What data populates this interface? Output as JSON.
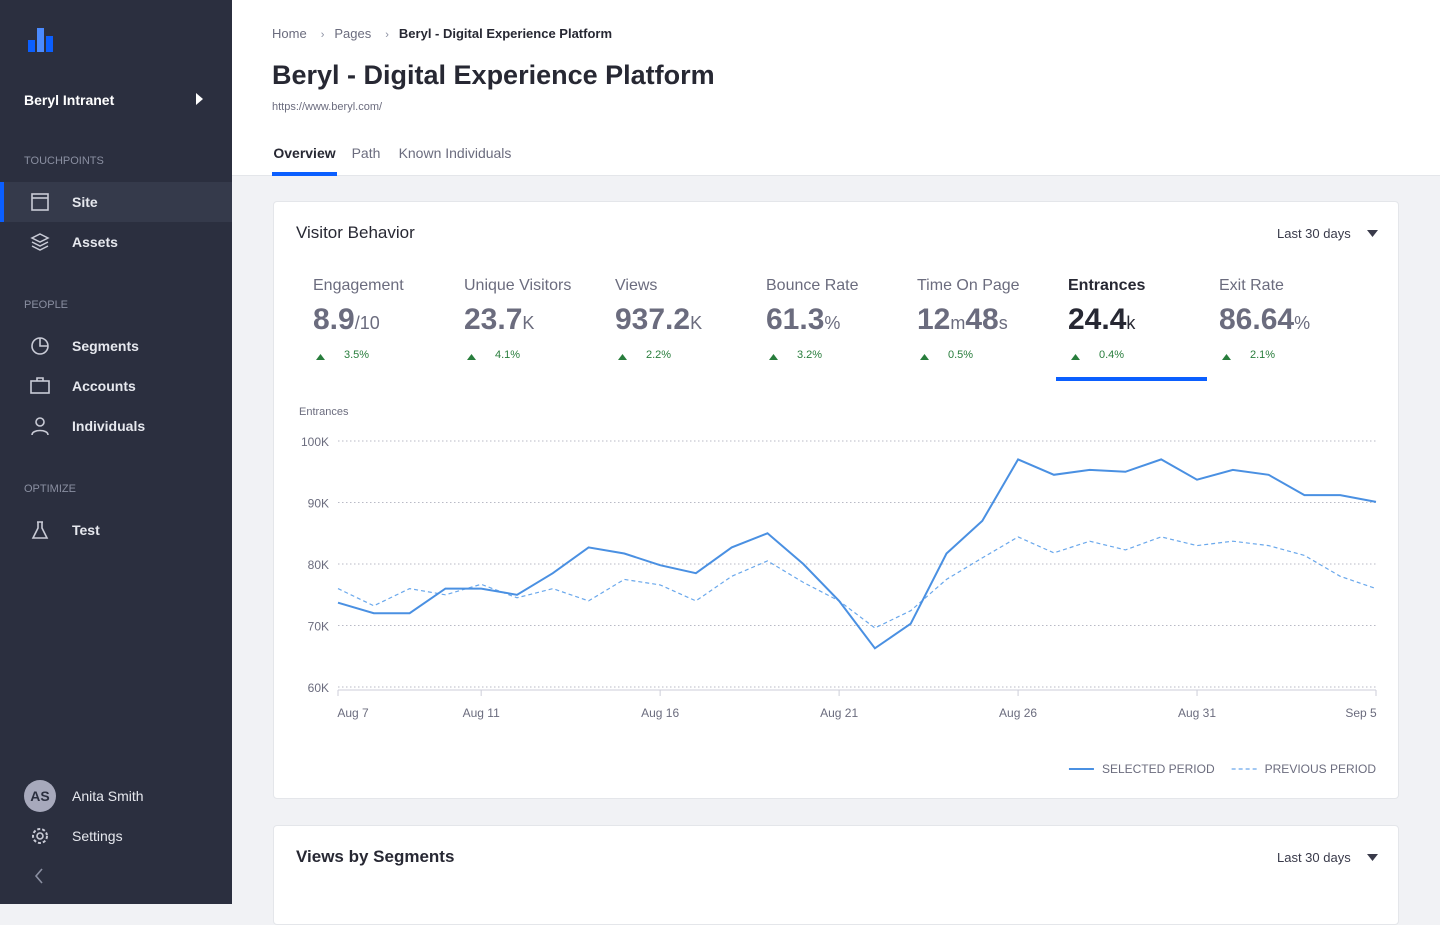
{
  "sidebar": {
    "brand": "Beryl Intranet",
    "sections": [
      {
        "title": "TOUCHPOINTS",
        "items": [
          {
            "label": "Site",
            "active": true
          },
          {
            "label": "Assets",
            "active": false
          }
        ]
      },
      {
        "title": "PEOPLE",
        "items": [
          {
            "label": "Segments",
            "active": false
          },
          {
            "label": "Accounts",
            "active": false
          },
          {
            "label": "Individuals",
            "active": false
          }
        ]
      },
      {
        "title": "OPTIMIZE",
        "items": [
          {
            "label": "Test",
            "active": false
          }
        ]
      }
    ],
    "user": {
      "initials": "AS",
      "name": "Anita Smith"
    },
    "settings": "Settings"
  },
  "header": {
    "breadcrumb": [
      "Home",
      "Pages",
      "Beryl - Digital Experience Platform"
    ],
    "title": "Beryl - Digital Experience Platform",
    "url": "https://www.beryl.com/",
    "tabs": [
      "Overview",
      "Path",
      "Known Individuals"
    ],
    "active_tab": 0
  },
  "card": {
    "title": "Visitor Behavior",
    "range": "Last 30 days",
    "active": 5,
    "metrics": [
      {
        "label": "Engagement",
        "parts": [
          {
            "v": 8.9,
            "u": "/10"
          }
        ],
        "change": "3.5%"
      },
      {
        "label": "Unique Visitors",
        "parts": [
          {
            "v": 23.7,
            "u": "K"
          }
        ],
        "change": "4.1%"
      },
      {
        "label": "Views",
        "parts": [
          {
            "v": 937.2,
            "u": "K"
          }
        ],
        "change": "2.2%"
      },
      {
        "label": "Bounce Rate",
        "parts": [
          {
            "v": 61.3,
            "u": "%"
          }
        ],
        "change": "3.2%"
      },
      {
        "label": "Time On Page",
        "parts": [
          {
            "v": 12,
            "u": "m"
          },
          {
            "v": 48,
            "u": "s"
          }
        ],
        "change": "0.5%"
      },
      {
        "label": "Entrances",
        "parts": [
          {
            "v": 24.4,
            "u": "k"
          }
        ],
        "change": "0.4%"
      },
      {
        "label": "Exit Rate",
        "parts": [
          {
            "v": 86.64,
            "u": "%"
          }
        ],
        "change": "2.1%"
      }
    ]
  },
  "chart_data": {
    "type": "line",
    "y_label": "Entrances",
    "categories": [
      "Aug 7",
      null,
      null,
      null,
      "Aug 11",
      null,
      null,
      null,
      null,
      "Aug 16",
      null,
      null,
      null,
      null,
      "Aug 21",
      null,
      null,
      null,
      null,
      "Aug 26",
      null,
      null,
      null,
      null,
      "Aug 31",
      null,
      null,
      null,
      null,
      "Sep 5"
    ],
    "series": [
      {
        "name": "SELECTED PERIOD",
        "color": "#4a90e2",
        "dashed": false,
        "values": [
          73700,
          72000,
          72000,
          76000,
          76000,
          75000,
          78500,
          82700,
          81700,
          79800,
          78500,
          82700,
          85000,
          80000,
          74000,
          66300,
          70300,
          81700,
          87000,
          97000,
          94500,
          95300,
          95000,
          97000,
          93700,
          95300,
          94500,
          91200,
          91200,
          90100
        ]
      },
      {
        "name": "PREVIOUS PERIOD",
        "color": "#6aa8ec",
        "dashed": true,
        "values": [
          76000,
          73200,
          76000,
          75000,
          76700,
          74500,
          76000,
          74000,
          77500,
          76600,
          74000,
          78000,
          80500,
          77000,
          74000,
          69600,
          72400,
          77500,
          81000,
          84400,
          81800,
          83700,
          82300,
          84400,
          83000,
          83700,
          83000,
          81400,
          78000,
          76000
        ]
      }
    ],
    "ylim": [
      60000,
      100000
    ],
    "yticks": [
      {
        "value": 60000,
        "label": "60K"
      },
      {
        "value": 70000,
        "label": "70K"
      },
      {
        "value": 80000,
        "label": "80K"
      },
      {
        "value": 90000,
        "label": "90K"
      },
      {
        "value": 100000,
        "label": "100K"
      }
    ],
    "grid": true,
    "legend": "bottom-right"
  },
  "card2": {
    "title": "Views by Segments",
    "range": "Last 30 days"
  }
}
